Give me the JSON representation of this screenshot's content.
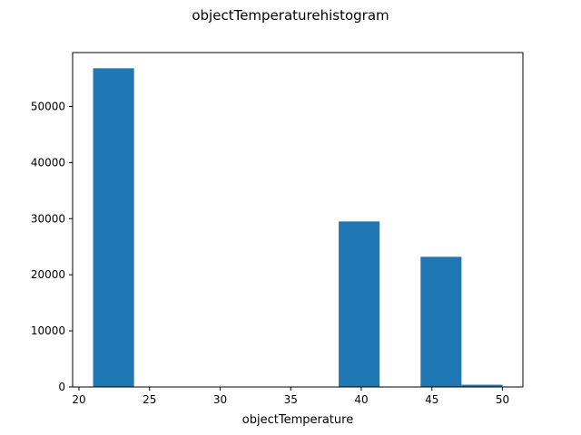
{
  "chart_data": {
    "type": "bar",
    "title": "objectTemperaturehistogram",
    "xlabel": "objectTemperature",
    "ylabel": "",
    "xlim": [
      19.55,
      51.45
    ],
    "ylim": [
      0,
      59600
    ],
    "x_ticks": [
      "20",
      "25",
      "30",
      "35",
      "40",
      "45",
      "50"
    ],
    "y_ticks": [
      "0",
      "10000",
      "20000",
      "30000",
      "40000",
      "50000"
    ],
    "bin_edges": [
      21,
      23.9,
      26.8,
      29.7,
      32.6,
      35.5,
      38.4,
      41.3,
      44.2,
      47.1,
      50
    ],
    "values": [
      56800,
      0,
      0,
      0,
      0,
      0,
      29500,
      0,
      23200,
      400
    ],
    "color": "#1f77b4",
    "grid": false,
    "legend": false
  }
}
